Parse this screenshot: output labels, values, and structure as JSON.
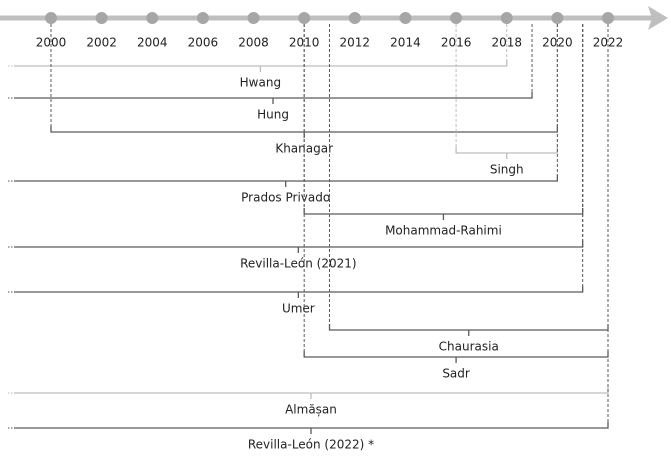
{
  "axis": {
    "ticks": [
      2000,
      2002,
      2004,
      2006,
      2008,
      2010,
      2012,
      2014,
      2016,
      2018,
      2020,
      2022
    ]
  },
  "studies": [
    {
      "label": "Hwang",
      "start": null,
      "end": 2018,
      "color": "#bdbdbd"
    },
    {
      "label": "Hung",
      "start": null,
      "end": 2019,
      "color": "#5a5a5a"
    },
    {
      "label": "Khanagar",
      "start": 2000,
      "end": 2020,
      "color": "#5a5a5a"
    },
    {
      "label": "Singh",
      "start": 2016,
      "end": 2020,
      "color": "#bdbdbd"
    },
    {
      "label": "Prados Privado",
      "start": null,
      "end": 2020,
      "color": "#5a5a5a"
    },
    {
      "label": "Mohammad-Rahimi",
      "start": 2010,
      "end": 2021,
      "color": "#5a5a5a"
    },
    {
      "label": "Revilla-León (2021)",
      "start": null,
      "end": 2021,
      "color": "#5a5a5a"
    },
    {
      "label": "Umer",
      "start": null,
      "end": 2021,
      "color": "#5a5a5a"
    },
    {
      "label": "Chaurasia",
      "start": 2011,
      "end": 2022,
      "color": "#5a5a5a"
    },
    {
      "label": "Sadr",
      "start": 2010,
      "end": 2022,
      "color": "#5a5a5a"
    },
    {
      "label": "Almășan",
      "start": null,
      "end": 2022,
      "color": "#bdbdbd"
    },
    {
      "label": "Revilla-León (2022) *",
      "start": null,
      "end": 2022,
      "color": "#5a5a5a"
    }
  ]
}
